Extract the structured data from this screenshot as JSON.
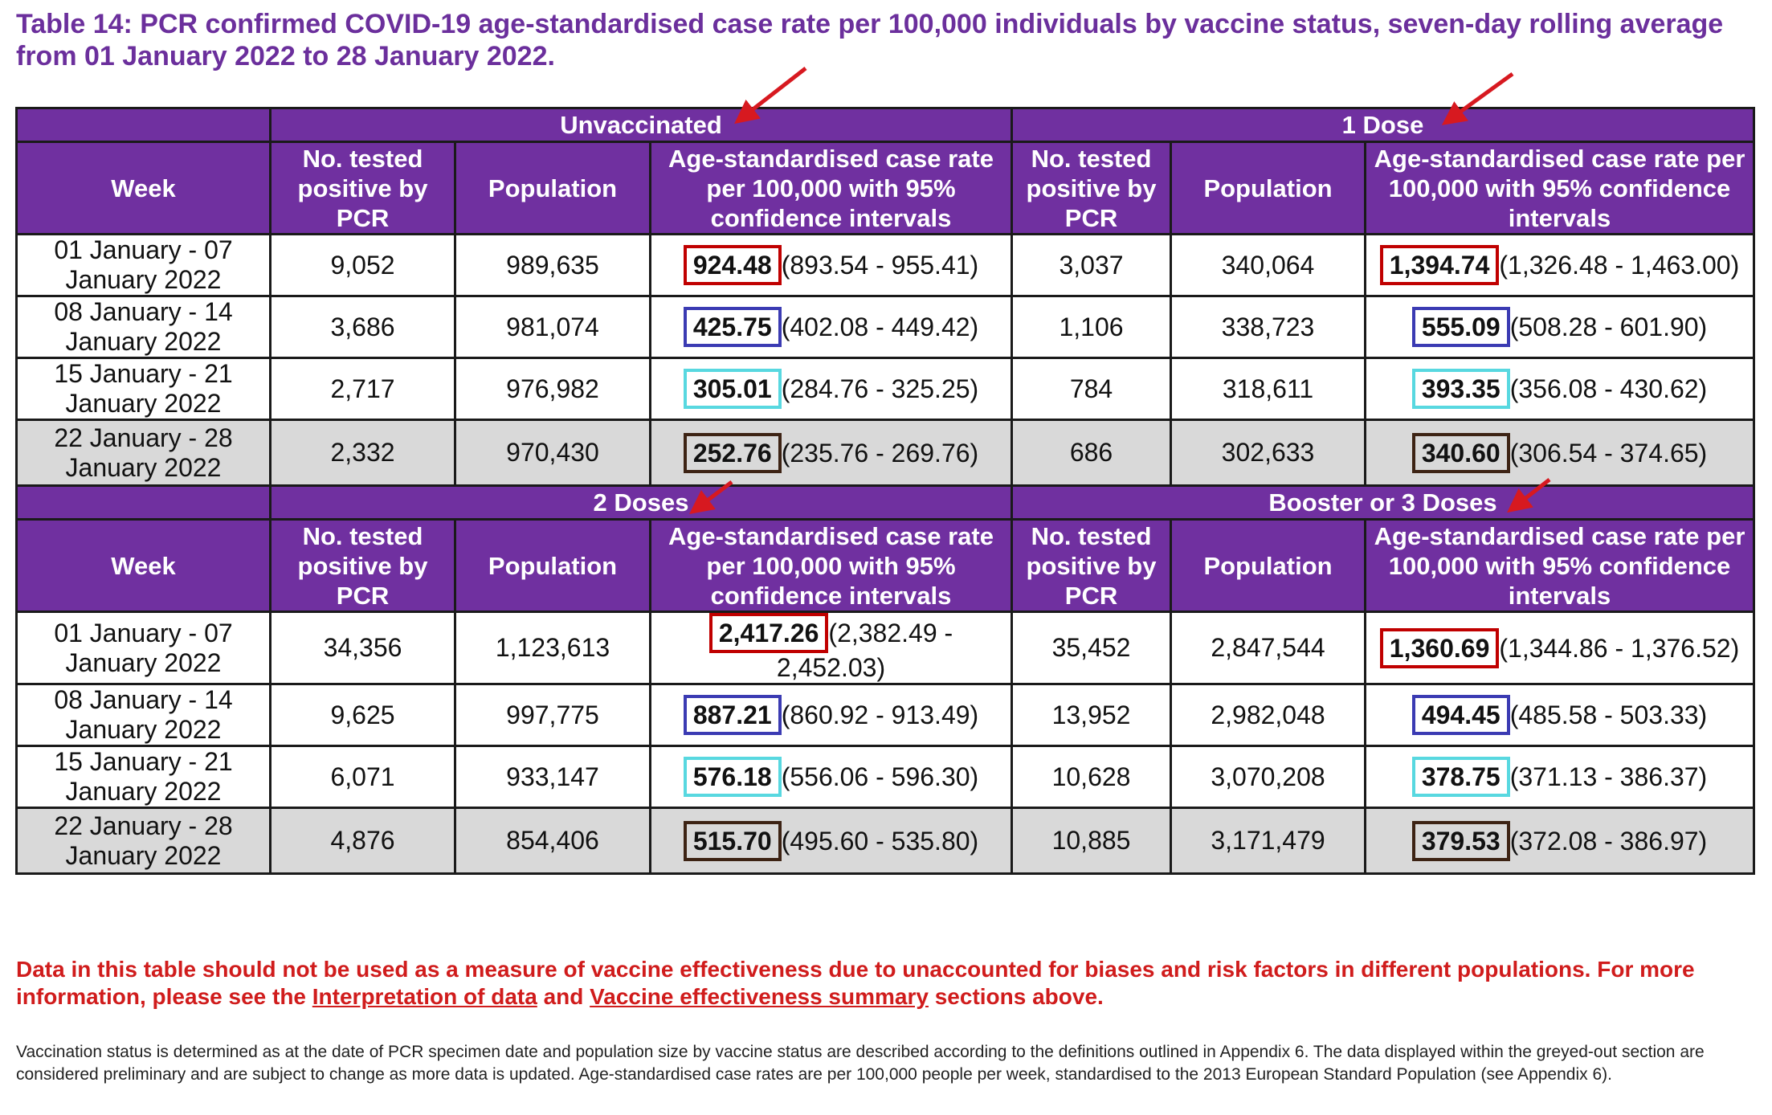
{
  "title": "Table 14: PCR confirmed COVID-19 age-standardised case rate per 100,000 individuals by vaccine status, seven-day rolling average from 01 January 2022 to 28 January 2022.",
  "headers": {
    "week": "Week",
    "tested": "No. tested positive by PCR",
    "population": "Population",
    "rate_left": "Age-standardised case rate per 100,000 with 95% confidence intervals",
    "rate_right": "Age-standardised case rate per 100,000 with 95% confidence intervals"
  },
  "blocks": [
    {
      "groups": [
        "Unvaccinated",
        "1 Dose"
      ],
      "rows": [
        {
          "week": "01 January - 07 January 2022",
          "a_tested": "9,052",
          "a_pop": "989,635",
          "a_rate": "924.48",
          "a_ci": "(893.54 - 955.41)",
          "b_tested": "3,037",
          "b_pop": "340,064",
          "b_rate": "1,394.74",
          "b_ci": "(1,326.48 - 1,463.00)"
        },
        {
          "week": "08 January - 14 January 2022",
          "a_tested": "3,686",
          "a_pop": "981,074",
          "a_rate": "425.75",
          "a_ci": "(402.08 - 449.42)",
          "b_tested": "1,106",
          "b_pop": "338,723",
          "b_rate": "555.09",
          "b_ci": "(508.28 - 601.90)"
        },
        {
          "week": "15 January - 21 January 2022",
          "a_tested": "2,717",
          "a_pop": "976,982",
          "a_rate": "305.01",
          "a_ci": "(284.76 - 325.25)",
          "b_tested": "784",
          "b_pop": "318,611",
          "b_rate": "393.35",
          "b_ci": "(356.08 - 430.62)"
        },
        {
          "week": "22 January - 28 January 2022",
          "a_tested": "2,332",
          "a_pop": "970,430",
          "a_rate": "252.76",
          "a_ci": "(235.76 - 269.76)",
          "b_tested": "686",
          "b_pop": "302,633",
          "b_rate": "340.60",
          "b_ci": "(306.54 - 374.65)"
        }
      ]
    },
    {
      "groups": [
        "2 Doses",
        "Booster or 3 Doses"
      ],
      "rows": [
        {
          "week": "01 January - 07 January 2022",
          "a_tested": "34,356",
          "a_pop": "1,123,613",
          "a_rate": "2,417.26",
          "a_ci": "(2,382.49 - 2,452.03)",
          "b_tested": "35,452",
          "b_pop": "2,847,544",
          "b_rate": "1,360.69",
          "b_ci": "(1,344.86 - 1,376.52)"
        },
        {
          "week": "08 January - 14 January 2022",
          "a_tested": "9,625",
          "a_pop": "997,775",
          "a_rate": "887.21",
          "a_ci": "(860.92 - 913.49)",
          "b_tested": "13,952",
          "b_pop": "2,982,048",
          "b_rate": "494.45",
          "b_ci": "(485.58 - 503.33)"
        },
        {
          "week": "15 January - 21 January 2022",
          "a_tested": "6,071",
          "a_pop": "933,147",
          "a_rate": "576.18",
          "a_ci": "(556.06 - 596.30)",
          "b_tested": "10,628",
          "b_pop": "3,070,208",
          "b_rate": "378.75",
          "b_ci": "(371.13 - 386.37)"
        },
        {
          "week": "22 January - 28 January 2022",
          "a_tested": "4,876",
          "a_pop": "854,406",
          "a_rate": "515.70",
          "a_ci": "(495.60 - 535.80)",
          "b_tested": "10,885",
          "b_pop": "3,171,479",
          "b_rate": "379.53",
          "b_ci": "(372.08 - 386.97)"
        }
      ]
    }
  ],
  "highlight_colors": {
    "week1": "#c00000",
    "week2": "#3b3bb3",
    "week3": "#58d8e0",
    "week4": "#3d2314"
  },
  "annotation_color": "#d71920",
  "warning": {
    "part1": "Data in this table should not be used as a measure of vaccine effectiveness due to unaccounted for biases and risk factors in different populations. For more information, please see the ",
    "link1": "Interpretation of data",
    "part2": " and ",
    "link2": "Vaccine effectiveness summary",
    "part3": " sections above."
  },
  "footnote": "Vaccination status is determined as at the date of PCR specimen date and population size by vaccine status are described according to the definitions outlined in Appendix 6. The data displayed within the greyed-out section are considered preliminary and are subject to change as more data is updated. Age-standardised case rates are per 100,000 people per week, standardised to the 2013 European Standard Population (see Appendix 6)."
}
